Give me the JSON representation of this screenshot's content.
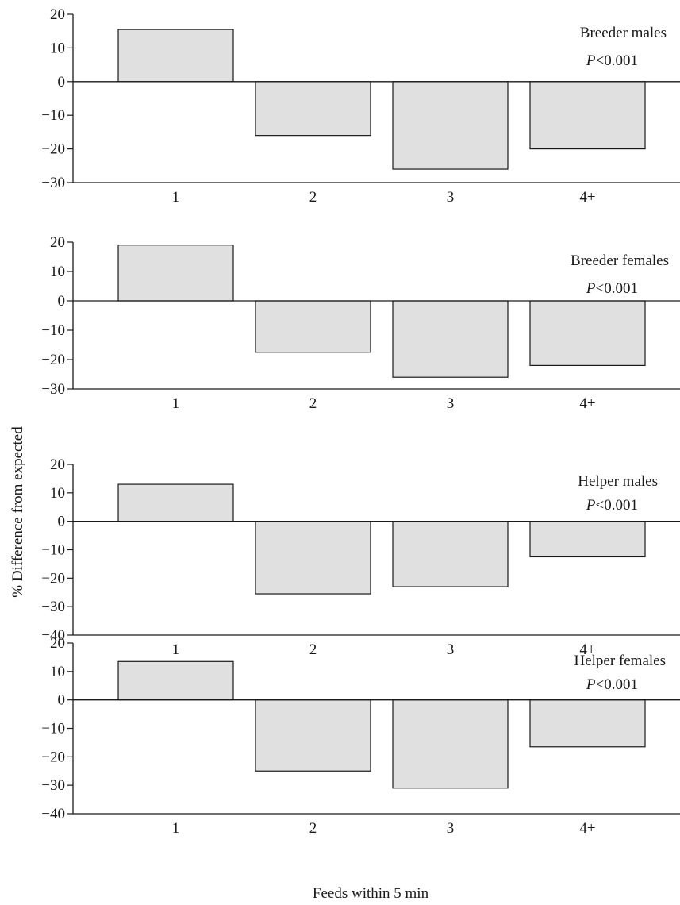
{
  "chart_data": [
    {
      "type": "bar",
      "panel_label": "Breeder males",
      "p_prefix": "P",
      "p_suffix": "<0.001",
      "categories": [
        "1",
        "2",
        "3",
        "4+"
      ],
      "values": [
        15.5,
        -16,
        -26,
        -20
      ],
      "ylim": [
        -30,
        20
      ],
      "yticks": [
        20,
        10,
        0,
        -10,
        -20,
        -30
      ]
    },
    {
      "type": "bar",
      "panel_label": "Breeder females",
      "p_prefix": "P",
      "p_suffix": "<0.001",
      "categories": [
        "1",
        "2",
        "3",
        "4+"
      ],
      "values": [
        19,
        -17.5,
        -26,
        -22
      ],
      "ylim": [
        -30,
        20
      ],
      "yticks": [
        20,
        10,
        0,
        -10,
        -20,
        -30
      ]
    },
    {
      "type": "bar",
      "panel_label": "Helper males",
      "p_prefix": "P",
      "p_suffix": "<0.001",
      "categories": [
        "1",
        "2",
        "3",
        "4+"
      ],
      "values": [
        13,
        -25.5,
        -23,
        -12.5
      ],
      "ylim": [
        -40,
        20
      ],
      "yticks": [
        20,
        10,
        0,
        -10,
        -20,
        -30,
        -40
      ]
    },
    {
      "type": "bar",
      "panel_label": "Helper females",
      "p_prefix": "P",
      "p_suffix": "<0.001",
      "categories": [
        "1",
        "2",
        "3",
        "4+"
      ],
      "values": [
        13.5,
        -25,
        -31,
        -16.5
      ],
      "ylim": [
        -40,
        20
      ],
      "yticks": [
        20,
        10,
        0,
        -10,
        -20,
        -30,
        -40
      ]
    }
  ],
  "ylabel": "% Difference from expected",
  "xlabel": "Feeds within 5 min",
  "colors": {
    "bar_fill": "#e0e0e0",
    "stroke": "#1a1a1a"
  }
}
